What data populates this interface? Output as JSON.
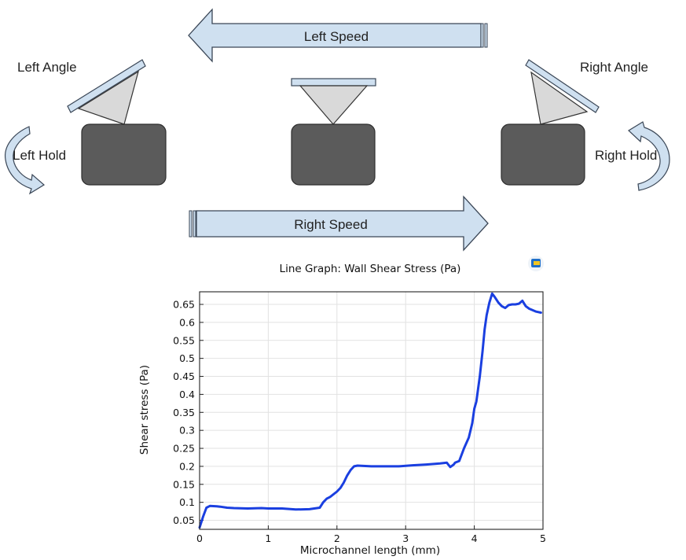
{
  "diagram": {
    "left_speed": "Left Speed",
    "right_speed": "Right Speed",
    "left_angle": "Left Angle",
    "right_angle": "Right Angle",
    "left_hold": "Left Hold",
    "right_hold": "Right Hold",
    "colors": {
      "arrow_fill": "#cfe0f0",
      "arrow_stroke": "#3a4656",
      "block_fill": "#5b5b5b",
      "triangle_fill": "#d9d9d9",
      "plate_fill": "#cfe0f0"
    }
  },
  "chart_data": {
    "type": "line",
    "title": "Line Graph: Wall Shear Stress (Pa)",
    "xlabel": "Microchannel length (mm)",
    "ylabel": "Shear stress (Pa)",
    "xlim": [
      0,
      5
    ],
    "ylim": [
      0.025,
      0.685
    ],
    "xticks": [
      "0",
      "1",
      "2",
      "3",
      "4",
      "5"
    ],
    "yticks": [
      "0.05",
      "0.1",
      "0.15",
      "0.2",
      "0.25",
      "0.3",
      "0.35",
      "0.4",
      "0.45",
      "0.5",
      "0.55",
      "0.6",
      "0.65"
    ],
    "grid": true,
    "line_color": "#1a3fe0",
    "series": [
      {
        "x": [
          0,
          0.05,
          0.1,
          0.15,
          0.25,
          0.3,
          0.4,
          0.5,
          0.7,
          0.9,
          1.0,
          1.2,
          1.4,
          1.6,
          1.75,
          1.8,
          1.85,
          1.9,
          2.0,
          2.05,
          2.1,
          2.15,
          2.2,
          2.25,
          2.3,
          2.5,
          2.7,
          2.9,
          3.1,
          3.3,
          3.5,
          3.6,
          3.65,
          3.7,
          3.72,
          3.78,
          3.85,
          3.92,
          3.97,
          4.0,
          4.03,
          4.08,
          4.12,
          4.15,
          4.18,
          4.22,
          4.26,
          4.3,
          4.35,
          4.4,
          4.45,
          4.5,
          4.55,
          4.6,
          4.65,
          4.7,
          4.75,
          4.8,
          4.9,
          4.97
        ],
        "y": [
          0.03,
          0.06,
          0.085,
          0.09,
          0.089,
          0.088,
          0.085,
          0.084,
          0.083,
          0.084,
          0.083,
          0.083,
          0.08,
          0.081,
          0.085,
          0.1,
          0.11,
          0.115,
          0.13,
          0.14,
          0.155,
          0.175,
          0.19,
          0.2,
          0.202,
          0.2,
          0.2,
          0.2,
          0.203,
          0.205,
          0.208,
          0.21,
          0.198,
          0.205,
          0.21,
          0.215,
          0.25,
          0.28,
          0.32,
          0.36,
          0.38,
          0.45,
          0.52,
          0.58,
          0.62,
          0.655,
          0.68,
          0.67,
          0.655,
          0.645,
          0.64,
          0.648,
          0.65,
          0.65,
          0.652,
          0.66,
          0.645,
          0.638,
          0.63,
          0.627
        ]
      }
    ]
  }
}
